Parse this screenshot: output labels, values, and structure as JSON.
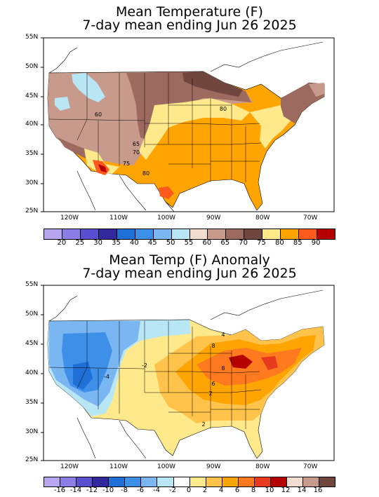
{
  "map1": {
    "title_line1": "Mean Temperature (F)",
    "title_line2": "7-day mean ending Jun 26 2025",
    "lat_labels": [
      "55N",
      "50N",
      "45N",
      "40N",
      "35N",
      "30N",
      "25N"
    ],
    "lon_labels": [
      "120W",
      "110W",
      "100W",
      "90W",
      "80W",
      "70W"
    ],
    "contour_labels": [
      "60",
      "65",
      "70",
      "75",
      "80",
      "80"
    ],
    "legend": {
      "colors": [
        "#b7a6ef",
        "#8c7ee6",
        "#5a4fd0",
        "#32289e",
        "#1e6fd6",
        "#3d8fe8",
        "#7ab6f2",
        "#b9e6f5",
        "#f2dccf",
        "#c79a8c",
        "#9c6a5e",
        "#6f473e",
        "#ffe98a",
        "#ffa400",
        "#ff5a1e",
        "#b40000"
      ],
      "labels": [
        "20",
        "25",
        "30",
        "35",
        "40",
        "45",
        "50",
        "55",
        "60",
        "65",
        "70",
        "75",
        "80",
        "85",
        "90"
      ]
    }
  },
  "map2": {
    "title_line1": "Mean Temp (F) Anomaly",
    "title_line2": "7-day mean ending Jun 26 2025",
    "lat_labels": [
      "55N",
      "50N",
      "45N",
      "40N",
      "35N",
      "30N",
      "25N"
    ],
    "lon_labels": [
      "120W",
      "110W",
      "100W",
      "90W",
      "80W",
      "70W"
    ],
    "contour_labels": [
      "-4",
      "-2",
      "2",
      "4",
      "6",
      "8",
      "8",
      "2"
    ],
    "legend": {
      "colors": [
        "#b7a6ef",
        "#8c7ee6",
        "#5a4fd0",
        "#32289e",
        "#1e6fd6",
        "#3d8fe8",
        "#7ab6f2",
        "#b9e6f5",
        "#ffffff",
        "#ffe98a",
        "#ffc24a",
        "#ffa400",
        "#ff7a1e",
        "#e83a1e",
        "#b40000",
        "#f2dccf",
        "#c79a8c",
        "#6f473e"
      ],
      "labels": [
        "-16",
        "-14",
        "-12",
        "-10",
        "-8",
        "-6",
        "-4",
        "-2",
        "0",
        "2",
        "4",
        "6",
        "8",
        "10",
        "12",
        "14",
        "16"
      ]
    }
  }
}
